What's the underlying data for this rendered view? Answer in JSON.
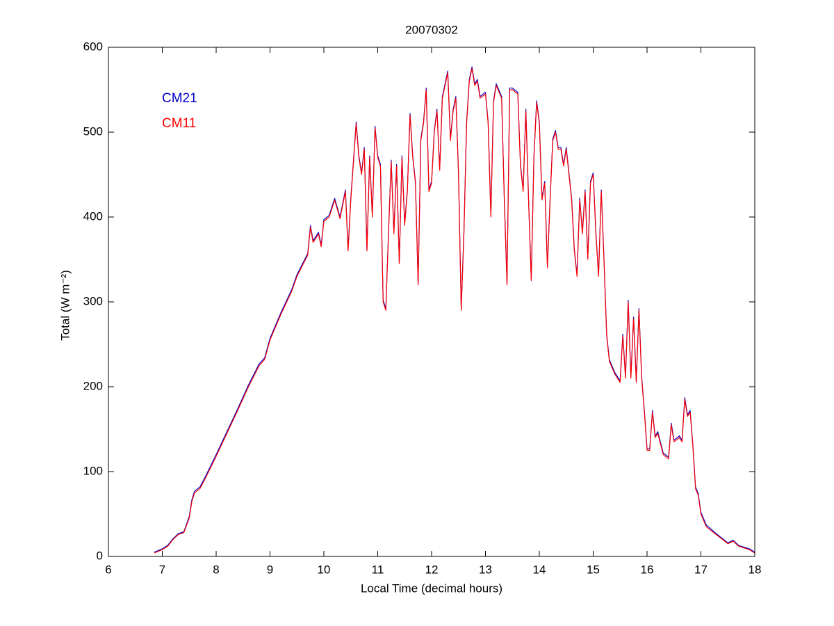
{
  "chart_data": {
    "type": "line",
    "title": "20070302",
    "x_label": "Local Time (decimal hours)",
    "y_label": "Total (W m⁻²)",
    "xlim": [
      6,
      18
    ],
    "xticks": [
      6,
      7,
      8,
      9,
      10,
      11,
      12,
      13,
      14,
      15,
      16,
      17,
      18
    ],
    "ylim": [
      0,
      600
    ],
    "yticks": [
      0,
      100,
      200,
      300,
      400,
      500,
      600
    ],
    "grid": false,
    "legend": "upper left",
    "x": [
      6.85,
      7.0,
      7.1,
      7.2,
      7.3,
      7.4,
      7.5,
      7.55,
      7.6,
      7.7,
      7.8,
      8.0,
      8.2,
      8.4,
      8.6,
      8.8,
      8.9,
      9.0,
      9.2,
      9.4,
      9.5,
      9.7,
      9.75,
      9.8,
      9.9,
      9.95,
      10.0,
      10.1,
      10.2,
      10.3,
      10.4,
      10.45,
      10.5,
      10.6,
      10.65,
      10.7,
      10.75,
      10.8,
      10.85,
      10.9,
      10.95,
      11.0,
      11.05,
      11.1,
      11.15,
      11.2,
      11.25,
      11.3,
      11.35,
      11.4,
      11.45,
      11.5,
      11.55,
      11.6,
      11.65,
      11.7,
      11.75,
      11.8,
      11.85,
      11.9,
      11.95,
      12.0,
      12.05,
      12.1,
      12.15,
      12.2,
      12.3,
      12.35,
      12.4,
      12.45,
      12.5,
      12.55,
      12.6,
      12.65,
      12.7,
      12.75,
      12.8,
      12.85,
      12.9,
      13.0,
      13.05,
      13.1,
      13.15,
      13.2,
      13.3,
      13.35,
      13.4,
      13.45,
      13.5,
      13.6,
      13.65,
      13.7,
      13.75,
      13.8,
      13.85,
      13.9,
      13.95,
      14.0,
      14.05,
      14.1,
      14.15,
      14.2,
      14.25,
      14.3,
      14.35,
      14.4,
      14.45,
      14.5,
      14.6,
      14.65,
      14.7,
      14.75,
      14.8,
      14.85,
      14.9,
      14.95,
      15.0,
      15.05,
      15.1,
      15.15,
      15.2,
      15.25,
      15.3,
      15.4,
      15.5,
      15.55,
      15.6,
      15.65,
      15.7,
      15.75,
      15.8,
      15.85,
      15.9,
      15.95,
      16.0,
      16.05,
      16.1,
      16.15,
      16.2,
      16.3,
      16.4,
      16.45,
      16.5,
      16.6,
      16.65,
      16.7,
      16.75,
      16.8,
      16.85,
      16.9,
      16.95,
      17.0,
      17.1,
      17.3,
      17.5,
      17.6,
      17.7,
      17.9,
      18.0
    ],
    "series": [
      {
        "name": "CM21",
        "color": "#0000c8",
        "values": [
          5,
          9,
          13,
          21,
          27,
          29,
          47,
          67,
          77,
          82,
          94,
          120,
          147,
          174,
          202,
          227,
          234,
          257,
          287,
          314,
          332,
          357,
          390,
          372,
          382,
          367,
          397,
          402,
          422,
          400,
          432,
          362,
          422,
          512,
          472,
          452,
          482,
          362,
          472,
          402,
          507,
          472,
          462,
          302,
          292,
          382,
          467,
          382,
          462,
          347,
          472,
          392,
          432,
          522,
          472,
          442,
          322,
          492,
          512,
          552,
          432,
          442,
          502,
          527,
          457,
          542,
          572,
          492,
          527,
          542,
          452,
          292,
          382,
          512,
          562,
          577,
          557,
          562,
          542,
          547,
          512,
          402,
          537,
          557,
          542,
          422,
          322,
          552,
          552,
          547,
          462,
          432,
          527,
          422,
          327,
          472,
          537,
          512,
          422,
          442,
          342,
          422,
          492,
          502,
          482,
          482,
          462,
          482,
          422,
          362,
          332,
          422,
          382,
          432,
          352,
          442,
          452,
          382,
          332,
          432,
          352,
          262,
          232,
          217,
          207,
          262,
          212,
          302,
          212,
          282,
          207,
          292,
          212,
          172,
          127,
          127,
          172,
          142,
          147,
          122,
          117,
          157,
          137,
          142,
          137,
          187,
          167,
          172,
          132,
          82,
          74,
          52,
          37,
          26,
          16,
          19,
          13,
          9,
          5
        ]
      },
      {
        "name": "CM11",
        "color": "#ff0000",
        "values": [
          4,
          8,
          12,
          20,
          26,
          28,
          45,
          65,
          75,
          80,
          92,
          118,
          145,
          172,
          200,
          225,
          232,
          255,
          285,
          312,
          330,
          355,
          388,
          370,
          380,
          365,
          395,
          400,
          420,
          398,
          430,
          360,
          420,
          510,
          470,
          450,
          480,
          360,
          470,
          400,
          505,
          470,
          460,
          300,
          290,
          380,
          465,
          380,
          460,
          345,
          470,
          390,
          430,
          520,
          470,
          440,
          320,
          490,
          510,
          550,
          430,
          440,
          500,
          525,
          455,
          540,
          570,
          490,
          525,
          540,
          450,
          290,
          380,
          510,
          560,
          575,
          555,
          560,
          540,
          545,
          510,
          400,
          535,
          555,
          540,
          420,
          320,
          550,
          550,
          545,
          460,
          430,
          525,
          420,
          325,
          470,
          535,
          510,
          420,
          440,
          340,
          420,
          490,
          500,
          480,
          480,
          460,
          480,
          420,
          360,
          330,
          420,
          380,
          430,
          350,
          440,
          450,
          380,
          330,
          430,
          350,
          260,
          230,
          215,
          205,
          260,
          210,
          300,
          210,
          280,
          205,
          290,
          210,
          170,
          125,
          125,
          170,
          140,
          145,
          120,
          115,
          155,
          135,
          140,
          135,
          185,
          165,
          170,
          130,
          80,
          72,
          50,
          35,
          25,
          15,
          18,
          12,
          8,
          4
        ]
      }
    ]
  }
}
